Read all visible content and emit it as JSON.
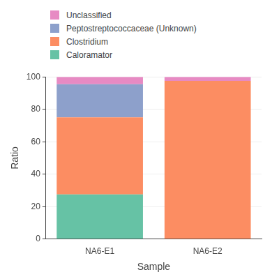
{
  "chart_data": {
    "type": "bar",
    "stacked": true,
    "grid": true,
    "legend": "top-left",
    "x_label": "Sample",
    "y_label": "Ratio",
    "categories": [
      "NA6-E1",
      "NA6-E2"
    ],
    "series": [
      {
        "name": "Caloramator",
        "color": "#66c2a5",
        "values": [
          27.5,
          0
        ]
      },
      {
        "name": "Clostridium",
        "color": "#fc8d62",
        "values": [
          47.5,
          97.5
        ]
      },
      {
        "name": "Peptostreptococcaceae (Unknown)",
        "color": "#8da0cb",
        "values": [
          20.5,
          0
        ]
      },
      {
        "name": "Unclassified",
        "color": "#e78ac3",
        "values": [
          4.5,
          2.5
        ]
      }
    ],
    "ylim": [
      0,
      100
    ],
    "yticks": [
      0,
      20,
      40,
      60,
      80,
      100
    ]
  }
}
